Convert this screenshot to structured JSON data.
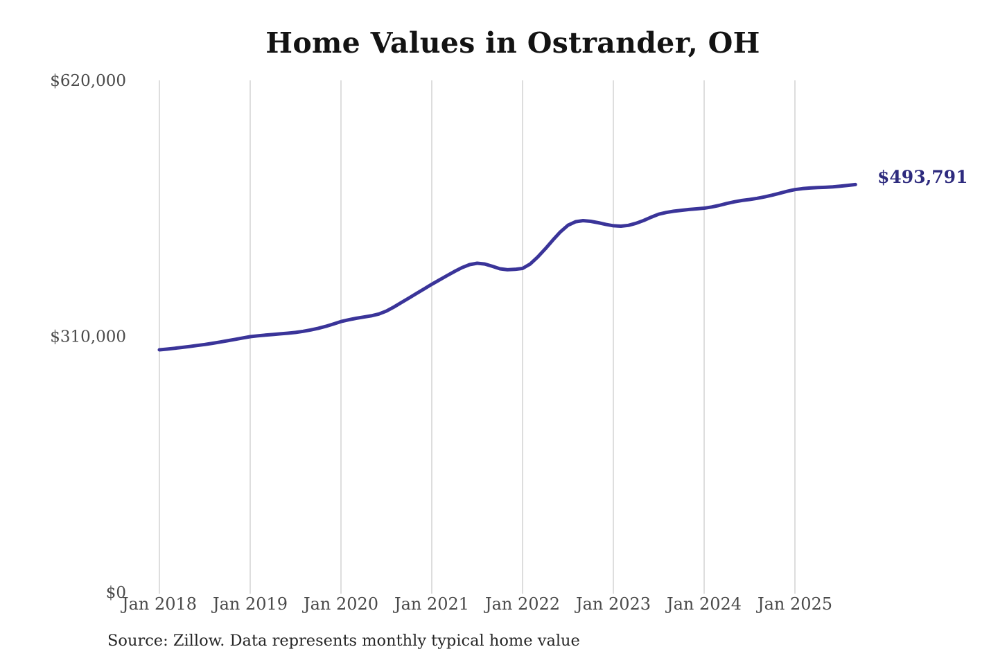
{
  "chart_data": {
    "type": "line",
    "title": "Home Values in Ostrander, OH",
    "xlabel": "",
    "ylabel": "",
    "ylim": [
      0,
      620000
    ],
    "grid": "vertical-only",
    "legend": "none",
    "line_color": "#3a3499",
    "grid_color": "#cbcbcb",
    "tick_text_color": "#4a4a4a",
    "end_label": "$493,791",
    "end_label_color": "#2e2b7e",
    "latest_value": 493791,
    "source_note": "Source: Zillow. Data represents monthly typical home value",
    "y_ticks": [
      0,
      310000,
      620000
    ],
    "y_tick_labels": [
      "$0",
      "$310,000",
      "$620,000"
    ],
    "x_tick_labels": [
      "Jan 2018",
      "Jan 2019",
      "Jan 2020",
      "Jan 2021",
      "Jan 2022",
      "Jan 2023",
      "Jan 2024",
      "Jan 2025"
    ],
    "months": [
      "2018-01",
      "2018-02",
      "2018-03",
      "2018-04",
      "2018-05",
      "2018-06",
      "2018-07",
      "2018-08",
      "2018-09",
      "2018-10",
      "2018-11",
      "2018-12",
      "2019-01",
      "2019-02",
      "2019-03",
      "2019-04",
      "2019-05",
      "2019-06",
      "2019-07",
      "2019-08",
      "2019-09",
      "2019-10",
      "2019-11",
      "2019-12",
      "2020-01",
      "2020-02",
      "2020-03",
      "2020-04",
      "2020-05",
      "2020-06",
      "2020-07",
      "2020-08",
      "2020-09",
      "2020-10",
      "2020-11",
      "2020-12",
      "2021-01",
      "2021-02",
      "2021-03",
      "2021-04",
      "2021-05",
      "2021-06",
      "2021-07",
      "2021-08",
      "2021-09",
      "2021-10",
      "2021-11",
      "2021-12",
      "2022-01",
      "2022-02",
      "2022-03",
      "2022-04",
      "2022-05",
      "2022-06",
      "2022-07",
      "2022-08",
      "2022-09",
      "2022-10",
      "2022-11",
      "2022-12",
      "2023-01",
      "2023-02",
      "2023-03",
      "2023-04",
      "2023-05",
      "2023-06",
      "2023-07",
      "2023-08",
      "2023-09",
      "2023-10",
      "2023-11",
      "2023-12",
      "2024-01",
      "2024-02",
      "2024-03",
      "2024-04",
      "2024-05",
      "2024-06",
      "2024-07",
      "2024-08",
      "2024-09",
      "2024-10",
      "2024-11",
      "2024-12",
      "2025-01",
      "2025-02",
      "2025-03",
      "2025-04",
      "2025-05",
      "2025-06",
      "2025-07",
      "2025-08",
      "2025-09"
    ],
    "values": [
      293600,
      294500,
      295500,
      296600,
      297700,
      298900,
      300100,
      301500,
      303000,
      304600,
      306300,
      308000,
      309600,
      310600,
      311400,
      312200,
      313000,
      313800,
      314700,
      316000,
      317700,
      319700,
      322100,
      324900,
      327900,
      330000,
      331800,
      333300,
      334800,
      337000,
      340500,
      345500,
      351000,
      356500,
      362000,
      367500,
      373000,
      378200,
      383400,
      388500,
      393200,
      396800,
      398500,
      397600,
      394800,
      391800,
      390600,
      391100,
      392200,
      397500,
      406000,
      416000,
      426500,
      436500,
      444500,
      448800,
      450100,
      449300,
      447600,
      445600,
      443900,
      443400,
      444400,
      446900,
      450300,
      454300,
      457900,
      460000,
      461500,
      462600,
      463600,
      464400,
      465200,
      466600,
      468600,
      470900,
      472900,
      474500,
      475700,
      477100,
      478900,
      481000,
      483300,
      485700,
      487700,
      488900,
      489600,
      490100,
      490500,
      491000,
      491800,
      492800,
      493791
    ]
  }
}
